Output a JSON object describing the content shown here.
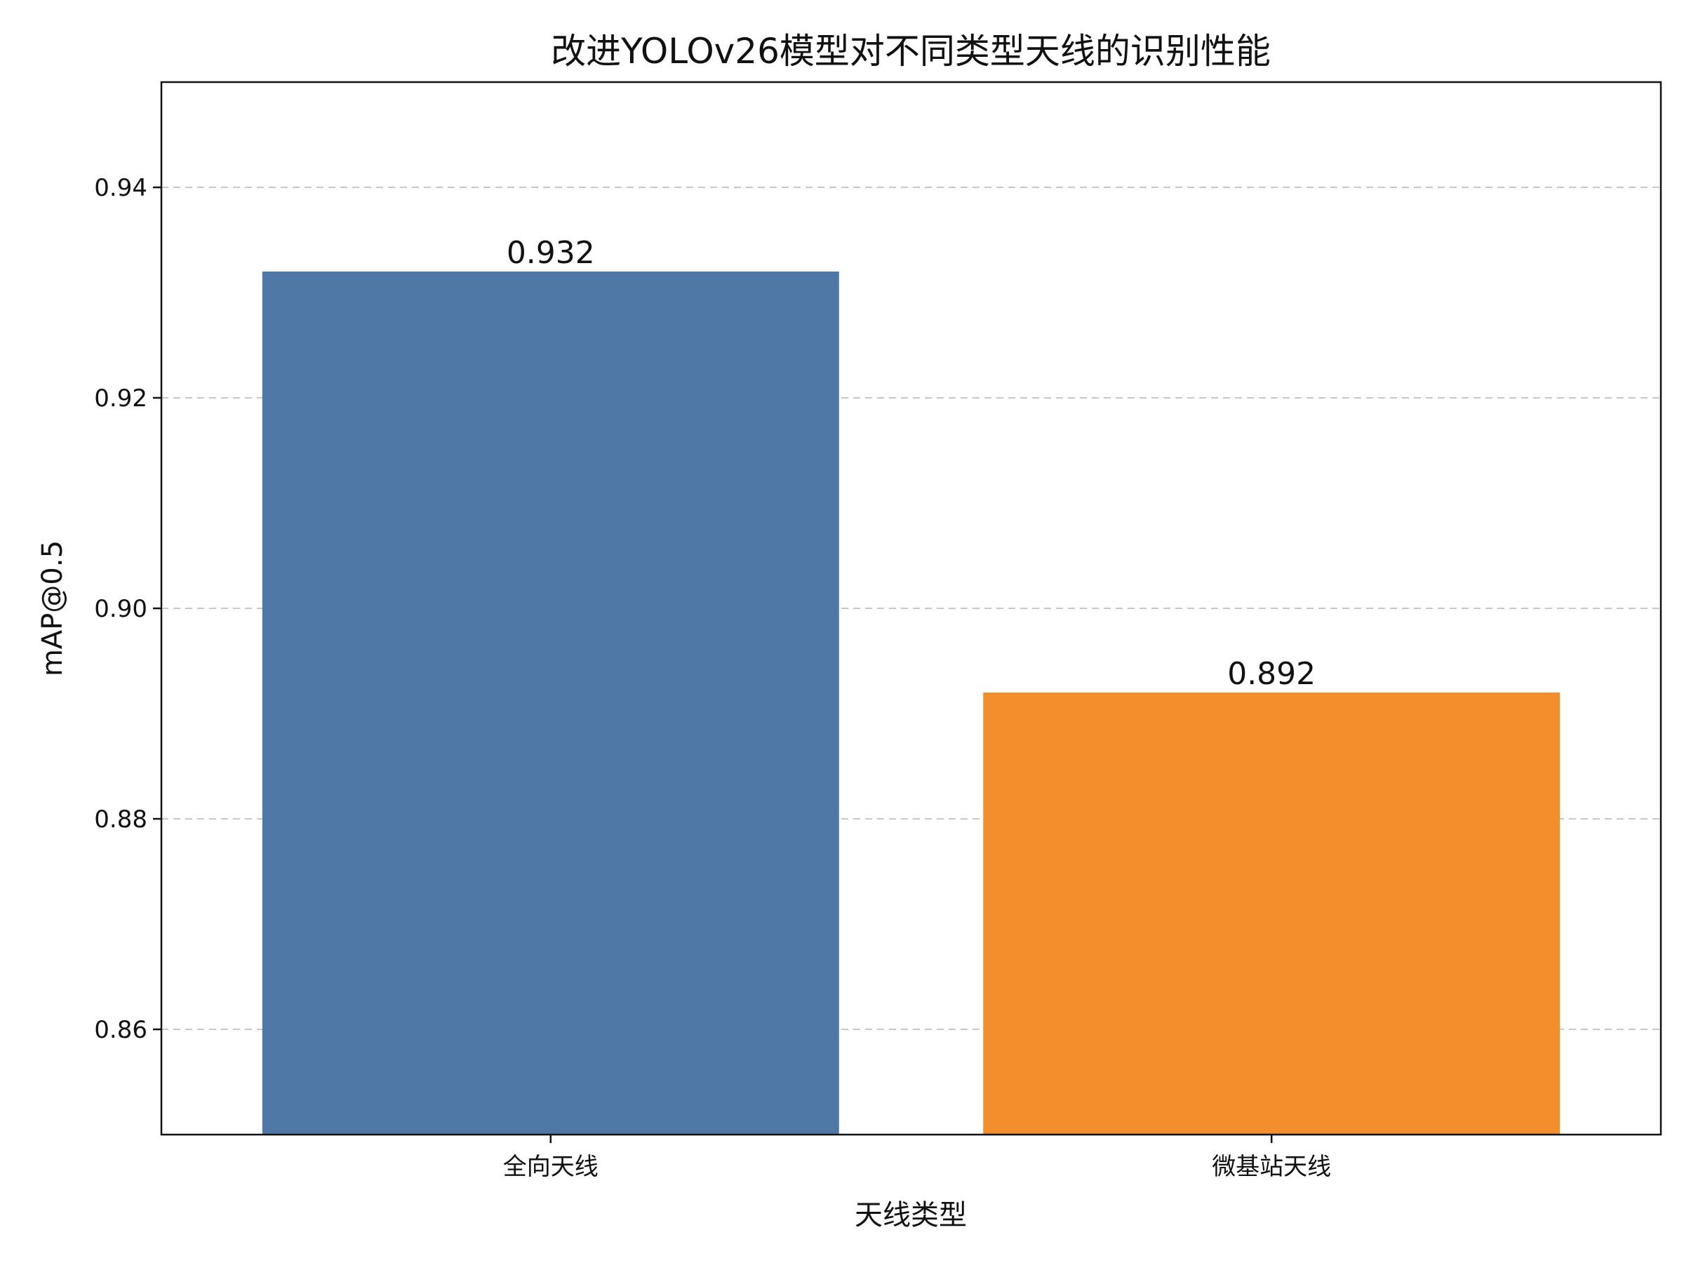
{
  "chart_data": {
    "type": "bar",
    "title": "改进YOLOv26模型对不同类型天线的识别性能",
    "xlabel": "天线类型",
    "ylabel": "mAP@0.5",
    "categories": [
      "全向天线",
      "微基站天线"
    ],
    "values": [
      0.932,
      0.892
    ],
    "data_labels": [
      "0.932",
      "0.892"
    ],
    "colors": [
      "#4f78a6",
      "#f28e2b"
    ],
    "ylim": [
      0.85,
      0.95
    ],
    "yticks": [
      0.86,
      0.88,
      0.9,
      0.92,
      0.94
    ],
    "ytick_labels": [
      "0.86",
      "0.88",
      "0.90",
      "0.92",
      "0.94"
    ],
    "grid": "y-dashed",
    "legend": "none"
  }
}
